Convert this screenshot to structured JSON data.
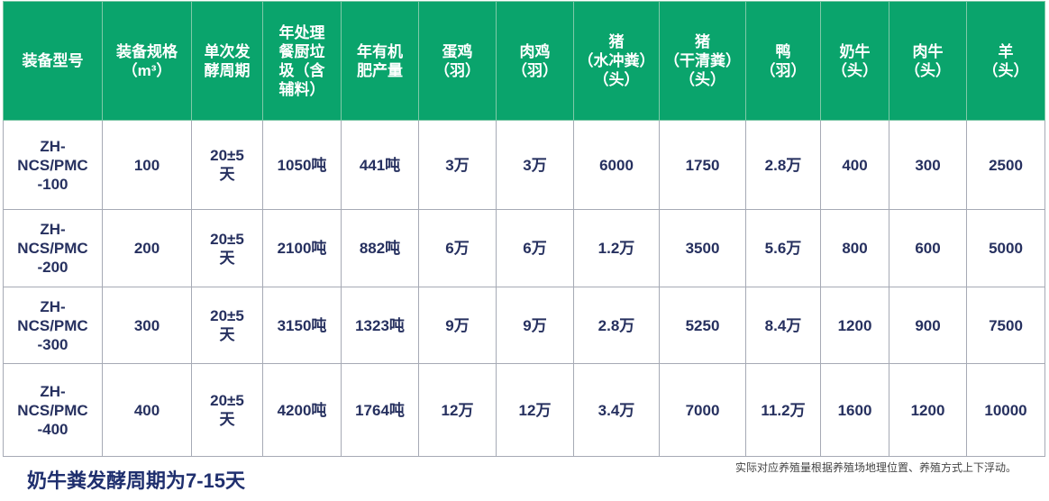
{
  "table": {
    "headers": [
      "装备型号",
      "装备规格\n（m³）",
      "单次发\n酵周期",
      "年处理\n餐厨垃\n圾（含\n辅料）",
      "年有机\n肥产量",
      "蛋鸡\n（羽）",
      "肉鸡\n（羽）",
      "猪\n（水冲粪）\n（头）",
      "猪\n（干清粪）\n（头）",
      "鸭\n（羽）",
      "奶牛\n（头）",
      "肉牛\n（头）",
      "羊\n（头）"
    ],
    "rows": [
      [
        "ZH-\nNCS/PMC\n-100",
        "100",
        "20±5\n天",
        "1050吨",
        "441吨",
        "3万",
        "3万",
        "6000",
        "1750",
        "2.8万",
        "400",
        "300",
        "2500"
      ],
      [
        "ZH-\nNCS/PMC\n-200",
        "200",
        "20±5\n天",
        "2100吨",
        "882吨",
        "6万",
        "6万",
        "1.2万",
        "3500",
        "5.6万",
        "800",
        "600",
        "5000"
      ],
      [
        "ZH-\nNCS/PMC\n-300",
        "300",
        "20±5\n天",
        "3150吨",
        "1323吨",
        "9万",
        "9万",
        "2.8万",
        "5250",
        "8.4万",
        "1200",
        "900",
        "7500"
      ],
      [
        "ZH-\nNCS/PMC\n-400",
        "400",
        "20±5\n天",
        "4200吨",
        "1764吨",
        "12万",
        "12万",
        "3.4万",
        "7000",
        "11.2万",
        "1600",
        "1200",
        "10000"
      ]
    ]
  },
  "notes": {
    "cow_cycle": "奶牛粪发酵周期为7-15天",
    "disclaimer": "实际对应养殖量根据养殖场地理位置、养殖方式上下浮动。"
  },
  "colors": {
    "header_bg": "#0aa46c",
    "header_text": "#ffffff",
    "cell_text": "#26305f"
  }
}
